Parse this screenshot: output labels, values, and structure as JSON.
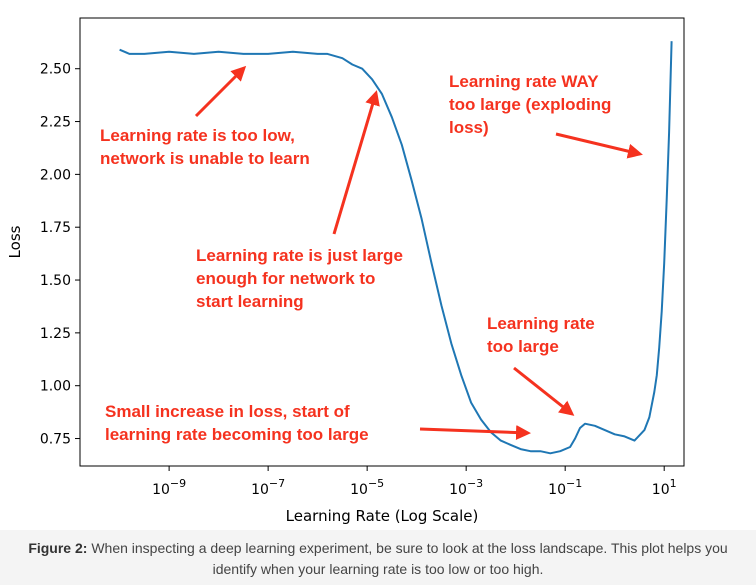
{
  "chart_data": {
    "type": "line",
    "xlabel": "Learning Rate (Log Scale)",
    "ylabel": "Loss",
    "x_scale": "log",
    "xlim_log10": [
      -10.8,
      1.4
    ],
    "ylim": [
      0.62,
      2.74
    ],
    "x_ticks": [
      {
        "exp": -9,
        "label": "10−9"
      },
      {
        "exp": -7,
        "label": "10−7"
      },
      {
        "exp": -5,
        "label": "10−5"
      },
      {
        "exp": -3,
        "label": "10−3"
      },
      {
        "exp": -1,
        "label": "10−1"
      },
      {
        "exp": 1,
        "label": "101"
      }
    ],
    "y_ticks": [
      {
        "value": 2.5,
        "label": "2.50"
      },
      {
        "value": 2.25,
        "label": "2.25"
      },
      {
        "value": 2.0,
        "label": "2.00"
      },
      {
        "value": 1.75,
        "label": "1.75"
      },
      {
        "value": 1.5,
        "label": "1.50"
      },
      {
        "value": 1.25,
        "label": "1.25"
      },
      {
        "value": 1.0,
        "label": "1.00"
      },
      {
        "value": 0.75,
        "label": "0.75"
      }
    ],
    "line_color": "#1f77b4",
    "annotation_color": "#f5321f",
    "series": [
      {
        "name": "loss",
        "log10_lr": [
          -10.0,
          -9.8,
          -9.5,
          -9.0,
          -8.5,
          -8.0,
          -7.5,
          -7.0,
          -6.5,
          -6.0,
          -5.8,
          -5.5,
          -5.3,
          -5.1,
          -4.9,
          -4.7,
          -4.5,
          -4.3,
          -4.1,
          -3.9,
          -3.7,
          -3.5,
          -3.3,
          -3.1,
          -2.9,
          -2.7,
          -2.5,
          -2.3,
          -2.1,
          -1.9,
          -1.7,
          -1.5,
          -1.3,
          -1.1,
          -0.9,
          -0.8,
          -0.7,
          -0.6,
          -0.4,
          -0.2,
          0.0,
          0.2,
          0.4,
          0.6,
          0.7,
          0.8,
          0.85,
          0.9,
          0.95,
          1.0,
          1.05,
          1.1,
          1.15
        ],
        "loss": [
          2.59,
          2.57,
          2.57,
          2.58,
          2.57,
          2.58,
          2.57,
          2.57,
          2.58,
          2.57,
          2.57,
          2.55,
          2.52,
          2.5,
          2.45,
          2.38,
          2.27,
          2.14,
          1.97,
          1.79,
          1.58,
          1.38,
          1.2,
          1.05,
          0.92,
          0.84,
          0.78,
          0.74,
          0.72,
          0.7,
          0.69,
          0.69,
          0.68,
          0.69,
          0.71,
          0.75,
          0.8,
          0.82,
          0.81,
          0.79,
          0.77,
          0.76,
          0.74,
          0.79,
          0.85,
          0.97,
          1.05,
          1.18,
          1.35,
          1.58,
          1.88,
          2.2,
          2.63
        ]
      }
    ],
    "annotations": [
      {
        "id": "too-low",
        "text": "Learning rate is too low,\nnetwork is unable to learn"
      },
      {
        "id": "just-large",
        "text": "Learning rate is just large\nenough for network to\nstart learning"
      },
      {
        "id": "way-too-large",
        "text": "Learning rate WAY\ntoo large (exploding\nloss)"
      },
      {
        "id": "too-large",
        "text": "Learning rate\ntoo large"
      },
      {
        "id": "small-increase",
        "text": "Small increase in loss, start of\nlearning rate becoming too large"
      }
    ]
  },
  "caption": {
    "label": "Figure 2:",
    "text": " When inspecting a deep learning experiment, be sure to look at the loss landscape. This plot helps you identify when your learning rate is too low or too high."
  }
}
